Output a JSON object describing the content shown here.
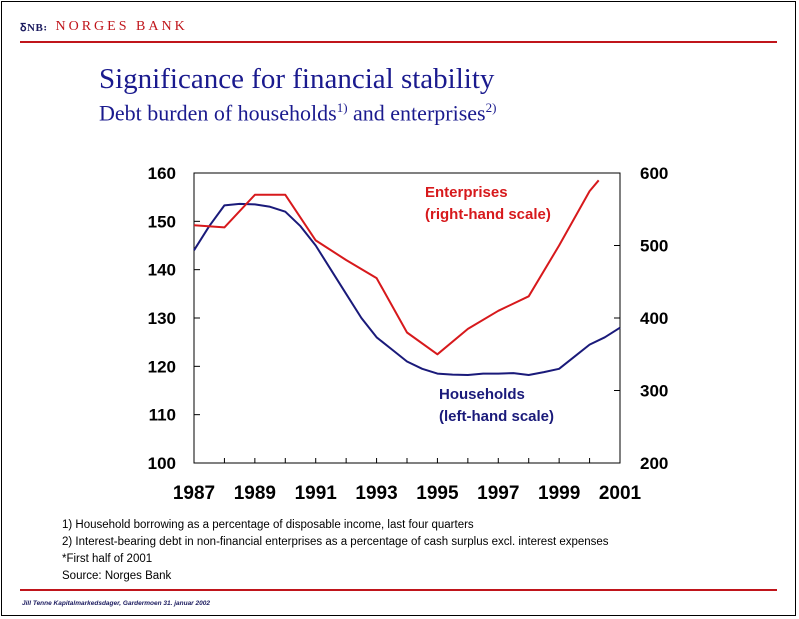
{
  "header": {
    "logo_mark": "ꝽNB꞉",
    "logo_name": "NORGES BANK"
  },
  "title": "Significance for financial stability",
  "subtitle": {
    "text_1": "Debt burden of households",
    "sup_1": "1)",
    "text_2": " and enterprises",
    "sup_2": "2)"
  },
  "chart_data": {
    "type": "line",
    "x_ticks": [
      "1987",
      "1989",
      "1991",
      "1993",
      "1995",
      "1997",
      "1999",
      "2001"
    ],
    "xlim": [
      1987,
      2001
    ],
    "y_left": {
      "lim": [
        100,
        160
      ],
      "ticks": [
        "100",
        "110",
        "120",
        "130",
        "140",
        "150",
        "160"
      ]
    },
    "y_right": {
      "lim": [
        200,
        600
      ],
      "ticks": [
        "200",
        "300",
        "400",
        "500",
        "600"
      ]
    },
    "grid": false,
    "series": [
      {
        "name": "Households",
        "name_line2": "(left-hand scale)",
        "axis": "left",
        "color": "#1a1a7a",
        "points": [
          [
            1987.0,
            144
          ],
          [
            1987.5,
            149
          ],
          [
            1988.0,
            153.3
          ],
          [
            1988.5,
            153.6
          ],
          [
            1989.0,
            153.5
          ],
          [
            1989.5,
            153
          ],
          [
            1990.0,
            152
          ],
          [
            1990.5,
            149
          ],
          [
            1991.0,
            145
          ],
          [
            1991.5,
            140
          ],
          [
            1992.0,
            135
          ],
          [
            1992.5,
            130
          ],
          [
            1993.0,
            126
          ],
          [
            1993.5,
            123.5
          ],
          [
            1994.0,
            121
          ],
          [
            1994.5,
            119.5
          ],
          [
            1995.0,
            118.5
          ],
          [
            1995.5,
            118.3
          ],
          [
            1996.0,
            118.2
          ],
          [
            1996.5,
            118.5
          ],
          [
            1997.0,
            118.5
          ],
          [
            1997.5,
            118.6
          ],
          [
            1998.0,
            118.2
          ],
          [
            1998.5,
            118.8
          ],
          [
            1999.0,
            119.5
          ],
          [
            1999.5,
            122
          ],
          [
            2000.0,
            124.5
          ],
          [
            2000.5,
            126
          ],
          [
            2001.0,
            128
          ]
        ]
      },
      {
        "name": "Enterprises",
        "name_line2": "(right-hand scale)",
        "axis": "right",
        "color": "#d7191c",
        "points": [
          [
            1987.0,
            528
          ],
          [
            1988.0,
            525
          ],
          [
            1989.0,
            570
          ],
          [
            1990.0,
            570
          ],
          [
            1991.0,
            507
          ],
          [
            1992.0,
            480
          ],
          [
            1993.0,
            455
          ],
          [
            1994.0,
            380
          ],
          [
            1995.0,
            350
          ],
          [
            1996.0,
            385
          ],
          [
            1997.0,
            410
          ],
          [
            1998.0,
            430
          ],
          [
            1999.0,
            500
          ],
          [
            2000.0,
            575
          ],
          [
            2000.3,
            590
          ]
        ]
      }
    ]
  },
  "footnotes": [
    "1) Household borrowing as a percentage of disposable income, last four quarters",
    "2) Interest-bearing debt in non-financial enterprises as a percentage of cash surplus excl. interest expenses",
    "*First half of 2001",
    "Source: Norges Bank"
  ],
  "footer": "Jill Tenne Kapitalmarkedsdager, Gardermoen 31. januar 2002"
}
